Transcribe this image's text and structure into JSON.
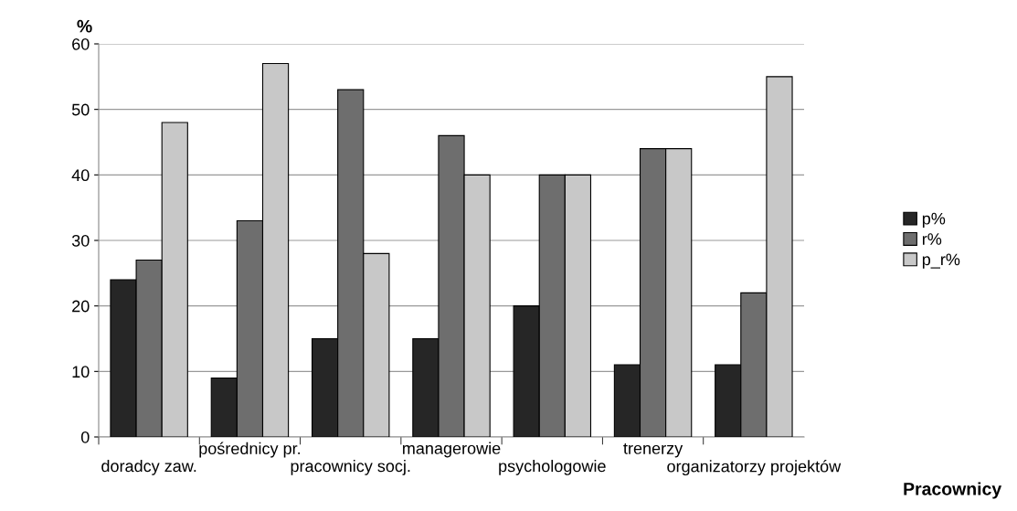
{
  "chart_data": {
    "type": "bar",
    "xlabel": "Pracownicy",
    "ylabel": "%",
    "categories": [
      "doradcy zaw.",
      "pośrednicy pr.",
      "pracownicy socj.",
      "managerowie",
      "psychologowie",
      "trenerzy",
      "organizatorzy projektów"
    ],
    "series": [
      {
        "name": "p%",
        "color": "#262626",
        "values": [
          24,
          9,
          15,
          15,
          20,
          11,
          11
        ]
      },
      {
        "name": "r%",
        "color": "#6e6e6e",
        "values": [
          27,
          33,
          53,
          46,
          40,
          44,
          22
        ]
      },
      {
        "name": "p_r%",
        "color": "#c8c8c8",
        "values": [
          48,
          57,
          28,
          40,
          40,
          44,
          55
        ]
      }
    ],
    "ylim": [
      0,
      60
    ],
    "yticks": [
      0,
      10,
      20,
      30,
      40,
      50,
      60
    ],
    "grid": "y",
    "legend": "right"
  }
}
